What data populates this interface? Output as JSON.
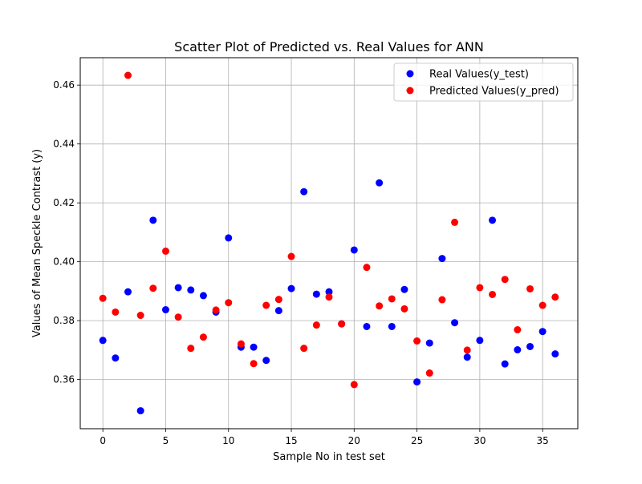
{
  "chart_data": {
    "type": "scatter",
    "title": "Scatter Plot of Predicted vs. Real Values for ANN",
    "xlabel": "Sample No in test set",
    "ylabel": "Values of Mean Speckle Contrast (y)",
    "xlim": [
      -1.8,
      37.8
    ],
    "ylim": [
      0.3433,
      0.4693
    ],
    "xticks": [
      0,
      5,
      10,
      15,
      20,
      25,
      30,
      35
    ],
    "xtick_labels": [
      "0",
      "5",
      "10",
      "15",
      "20",
      "25",
      "30",
      "35"
    ],
    "yticks": [
      0.36,
      0.38,
      0.4,
      0.42,
      0.44,
      0.46
    ],
    "ytick_labels": [
      "0.36",
      "0.38",
      "0.40",
      "0.42",
      "0.44",
      "0.46"
    ],
    "grid": true,
    "legend_position": "top-right",
    "series": [
      {
        "name": "Real Values(y_test)",
        "color": "#0000ff",
        "x": [
          0,
          1,
          2,
          3,
          4,
          5,
          6,
          7,
          8,
          9,
          10,
          11,
          12,
          13,
          14,
          15,
          16,
          17,
          18,
          19,
          20,
          21,
          22,
          23,
          24,
          25,
          26,
          27,
          28,
          29,
          30,
          31,
          32,
          33,
          34,
          35,
          36
        ],
        "y": [
          0.3733,
          0.3673,
          0.3898,
          0.3494,
          0.4141,
          0.3837,
          0.3912,
          0.3904,
          0.3885,
          0.3829,
          0.4081,
          0.371,
          0.371,
          0.3665,
          0.3834,
          0.3909,
          0.4238,
          0.389,
          0.3898,
          0.3789,
          0.404,
          0.378,
          0.4268,
          0.378,
          0.3906,
          0.3592,
          0.3724,
          0.4011,
          0.3793,
          0.3676,
          0.3733,
          0.4141,
          0.3653,
          0.3701,
          0.3712,
          0.3763,
          0.3687
        ]
      },
      {
        "name": "Predicted Values(y_pred)",
        "color": "#ff0000",
        "x": [
          0,
          1,
          2,
          3,
          4,
          5,
          6,
          7,
          8,
          9,
          10,
          11,
          12,
          13,
          14,
          15,
          16,
          17,
          18,
          19,
          20,
          21,
          22,
          23,
          24,
          25,
          26,
          27,
          28,
          29,
          30,
          31,
          32,
          33,
          34,
          35,
          36
        ],
        "y": [
          0.3876,
          0.3829,
          0.4633,
          0.3818,
          0.391,
          0.4036,
          0.3812,
          0.3706,
          0.3744,
          0.3836,
          0.3861,
          0.3721,
          0.3654,
          0.3852,
          0.3872,
          0.4018,
          0.3706,
          0.3785,
          0.388,
          0.3789,
          0.3583,
          0.3981,
          0.385,
          0.3874,
          0.384,
          0.3731,
          0.3622,
          0.3871,
          0.4134,
          0.37,
          0.3912,
          0.3889,
          0.394,
          0.3769,
          0.3908,
          0.3852,
          0.388
        ]
      }
    ]
  }
}
